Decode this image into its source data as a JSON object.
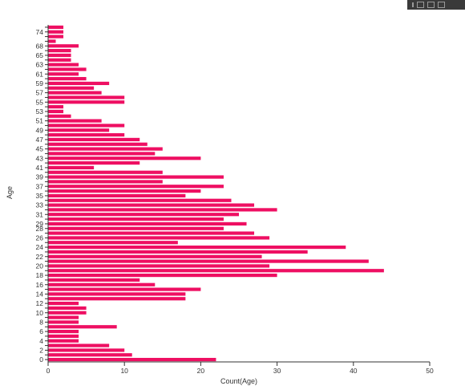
{
  "toolbar": {
    "icons": [
      "more-icon",
      "focus-mode-icon",
      "copy-visual-icon",
      "expand-icon"
    ]
  },
  "chart_data": {
    "type": "bar",
    "orientation": "horizontal",
    "xlabel": "Count(Age)",
    "ylabel": "Age",
    "xlim": [
      0,
      50
    ],
    "xticks": [
      0,
      10,
      20,
      30,
      40,
      50
    ],
    "bar_color": "#ee0f62",
    "grid": false,
    "categories": [
      0,
      1,
      2,
      3,
      4,
      5,
      6,
      7,
      8,
      9,
      10,
      11,
      12,
      13,
      14,
      15,
      16,
      17,
      18,
      19,
      20,
      21,
      22,
      23,
      24,
      25,
      26,
      27,
      28,
      29,
      30,
      31,
      32,
      33,
      34,
      35,
      36,
      37,
      38,
      39,
      40,
      41,
      42,
      43,
      44,
      45,
      46,
      47,
      48,
      49,
      50,
      51,
      52,
      53,
      54,
      55,
      56,
      57,
      58,
      59,
      60,
      61,
      62,
      63,
      64,
      65,
      66,
      68,
      70,
      71,
      74,
      80
    ],
    "values": [
      22,
      11,
      10,
      8,
      4,
      4,
      4,
      9,
      4,
      4,
      5,
      5,
      4,
      18,
      18,
      20,
      14,
      12,
      30,
      44,
      29,
      42,
      28,
      34,
      39,
      17,
      29,
      27,
      23,
      26,
      23,
      25,
      30,
      27,
      24,
      18,
      20,
      23,
      15,
      23,
      15,
      6,
      12,
      20,
      14,
      15,
      13,
      12,
      10,
      8,
      10,
      7,
      3,
      2,
      2,
      10,
      10,
      7,
      6,
      8,
      5,
      4,
      5,
      4,
      3,
      3,
      3,
      4,
      1,
      2,
      2,
      2
    ],
    "tick_labels": [
      "0",
      "2",
      "4",
      "6",
      "8",
      "10",
      "12",
      "14",
      "16",
      "18",
      "20",
      "22",
      "24",
      "26",
      "28",
      "29",
      "31",
      "33",
      "35",
      "37",
      "39",
      "41",
      "43",
      "45",
      "47",
      "49",
      "51",
      "53",
      "55",
      "57",
      "59",
      "61",
      "63",
      "65",
      "68",
      "74"
    ]
  }
}
